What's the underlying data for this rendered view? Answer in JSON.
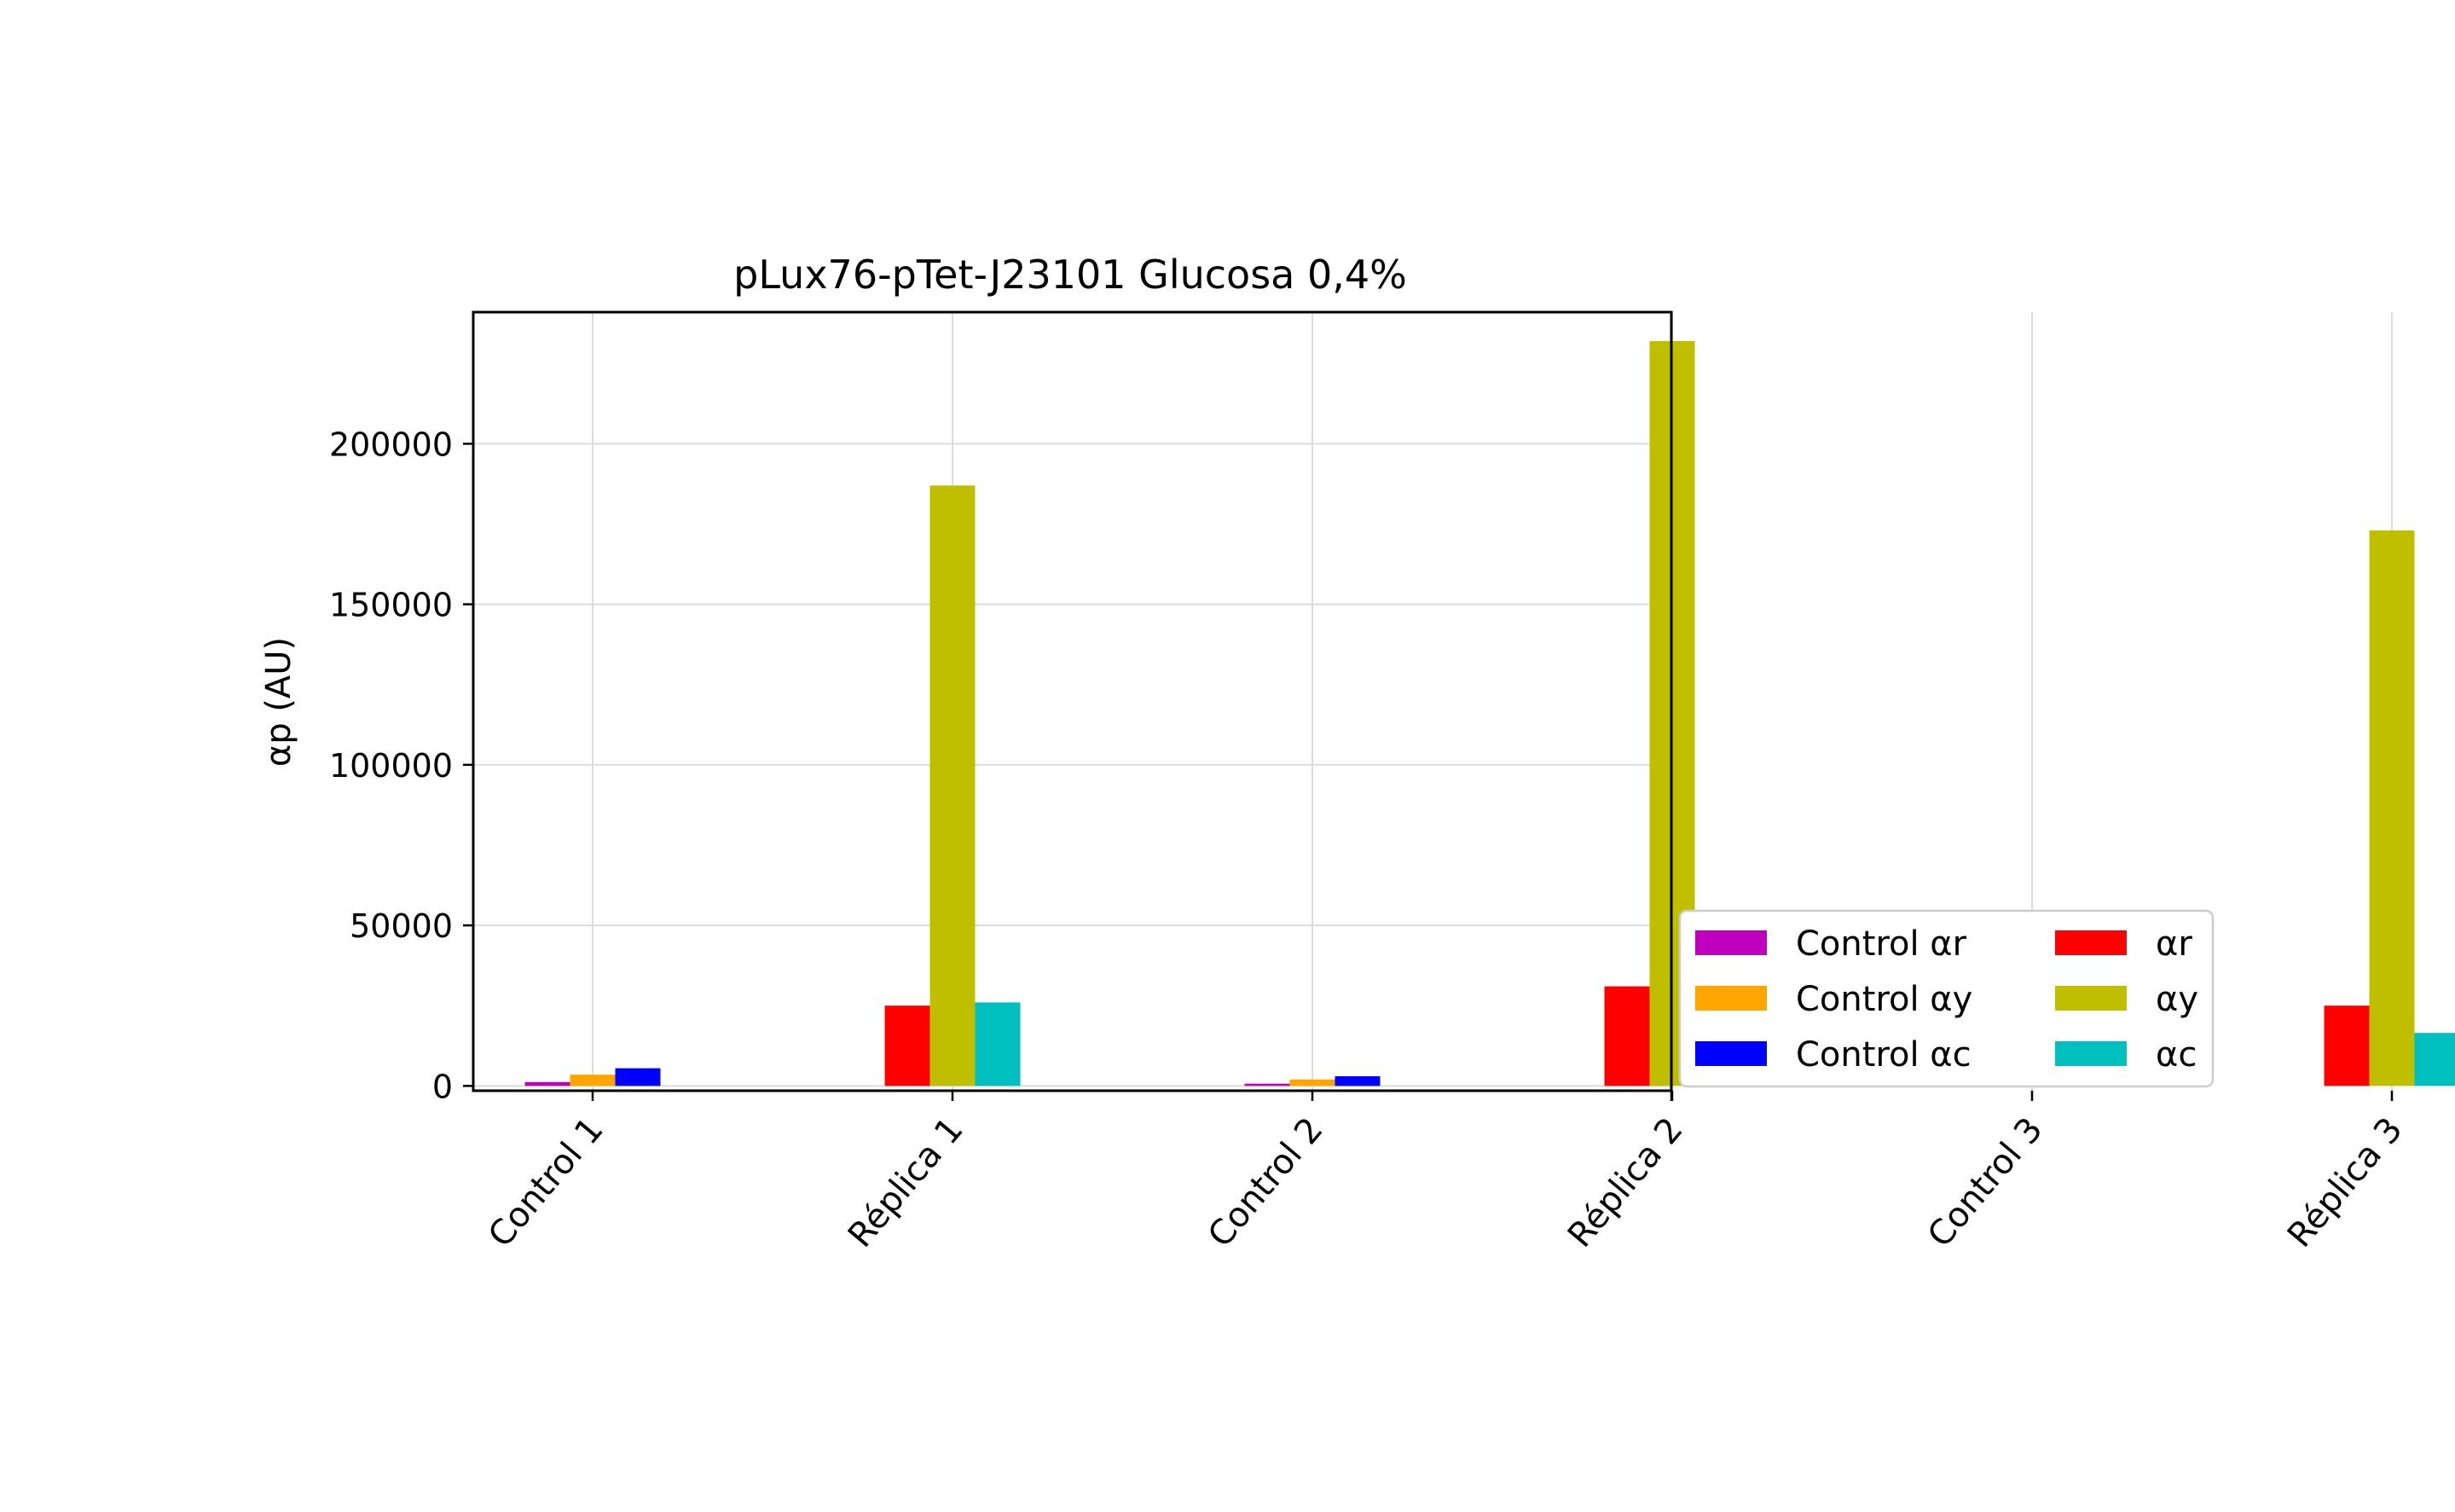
{
  "chart_data": {
    "type": "bar",
    "title": "pLux76-pTet-J23101 Glucosa 0,4%",
    "xlabel": "",
    "ylabel": "αp (AU)",
    "categories": [
      "Control 1",
      "Réplica 1",
      "Control 2",
      "Réplica 2",
      "Control 3",
      "Réplica 3"
    ],
    "ylim": [
      -1500,
      241000
    ],
    "yticks": [
      0,
      50000,
      100000,
      150000,
      200000
    ],
    "grid": true,
    "legend_position": "outside-bottom-right",
    "series": [
      {
        "name": "Control αr",
        "color": "#bf00bf",
        "values": [
          1200,
          0,
          700,
          0,
          600,
          0
        ]
      },
      {
        "name": "Control αy",
        "color": "#ffa500",
        "values": [
          3500,
          0,
          2000,
          0,
          2000,
          0
        ]
      },
      {
        "name": "Control αc",
        "color": "#0000ff",
        "values": [
          5500,
          0,
          3000,
          0,
          2500,
          0
        ]
      },
      {
        "name": "αr",
        "color": "#ff0000",
        "values": [
          0,
          25000,
          0,
          31000,
          0,
          25000
        ]
      },
      {
        "name": "αy",
        "color": "#bfbf00",
        "values": [
          0,
          187000,
          0,
          232000,
          0,
          173000
        ]
      },
      {
        "name": "αc",
        "color": "#00bfbf",
        "values": [
          0,
          26000,
          0,
          24000,
          0,
          16500
        ]
      }
    ]
  }
}
